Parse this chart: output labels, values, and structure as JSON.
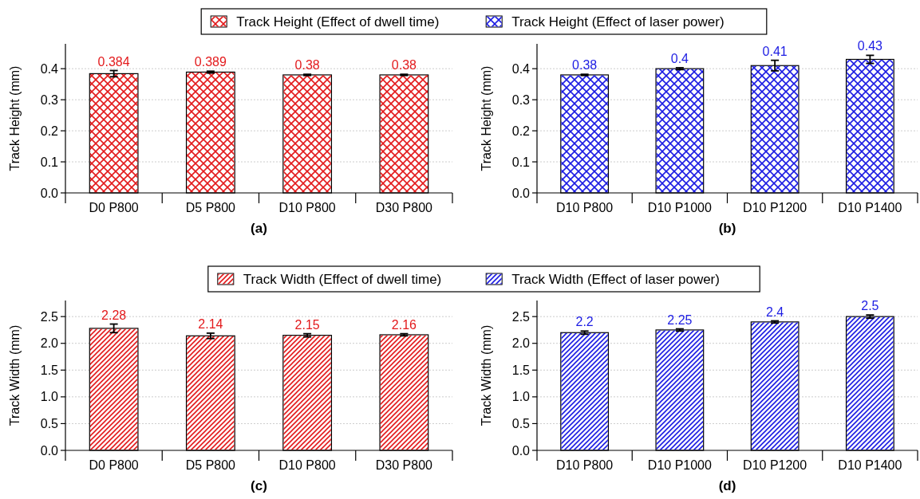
{
  "chart_data": [
    {
      "type": "bar",
      "xlabel": "(a)",
      "ylabel": "Track Height (mm)",
      "categories": [
        "D0 P800",
        "D5 P800",
        "D10 P800",
        "D30 P800"
      ],
      "series": [
        {
          "name": "Track Height (Effect of dwell time)",
          "color": "#e31a1c",
          "values": [
            0.384,
            0.389,
            0.38,
            0.38
          ],
          "errors": [
            0.01,
            0.003,
            0.002,
            0.002
          ]
        }
      ],
      "ylim": [
        0,
        0.48
      ],
      "yticks": [
        {
          "value": 0,
          "label": "0.0"
        },
        0.1,
        0.2,
        0.3,
        0.4
      ],
      "grid": "y",
      "legend": "top",
      "data_labels": true
    },
    {
      "type": "bar",
      "xlabel": "(b)",
      "ylabel": "Track Height (mm)",
      "categories": [
        "D10 P800",
        "D10 P1000",
        "D10 P1200",
        "D10 P1400"
      ],
      "series": [
        {
          "name": "Track Height (Effect of laser power)",
          "color": "#1c1ce3",
          "values": [
            0.38,
            0.4,
            0.41,
            0.43
          ],
          "errors": [
            0.002,
            0.003,
            0.017,
            0.013
          ]
        }
      ],
      "ylim": [
        0,
        0.48
      ],
      "yticks": [
        {
          "value": 0,
          "label": "0.0"
        },
        0.1,
        0.2,
        0.3,
        0.4
      ],
      "grid": "y",
      "legend": "top",
      "data_labels": true
    },
    {
      "type": "bar",
      "xlabel": "(c)",
      "ylabel": "Track Width (mm)",
      "categories": [
        "D0 P800",
        "D5 P800",
        "D10 P800",
        "D30 P800"
      ],
      "series": [
        {
          "name": "Track Width (Effect of dwell time)",
          "color": "#e31a1c",
          "values": [
            2.28,
            2.14,
            2.15,
            2.16
          ],
          "errors": [
            0.08,
            0.05,
            0.03,
            0.02
          ]
        }
      ],
      "ylim": [
        0,
        2.8
      ],
      "yticks": [
        {
          "value": 0,
          "label": "0.0"
        },
        0.5,
        {
          "value": 1,
          "label": "1.0"
        },
        1.5,
        {
          "value": 2,
          "label": "2.0"
        },
        2.5
      ],
      "grid": "y",
      "legend": "top",
      "data_labels": true
    },
    {
      "type": "bar",
      "xlabel": "(d)",
      "ylabel": "Track Width (mm)",
      "categories": [
        "D10 P800",
        "D10 P1000",
        "D10 P1200",
        "D10 P1400"
      ],
      "series": [
        {
          "name": "Track Width (Effect of laser power)",
          "color": "#1c1ce3",
          "values": [
            2.2,
            2.25,
            2.4,
            2.5
          ],
          "errors": [
            0.03,
            0.02,
            0.02,
            0.03
          ]
        }
      ],
      "ylim": [
        0,
        2.8
      ],
      "yticks": [
        {
          "value": 0,
          "label": "0.0"
        },
        0.5,
        {
          "value": 1,
          "label": "1.0"
        },
        1.5,
        {
          "value": 2,
          "label": "2.0"
        },
        2.5
      ],
      "grid": "y",
      "legend": "top",
      "data_labels": true
    }
  ]
}
